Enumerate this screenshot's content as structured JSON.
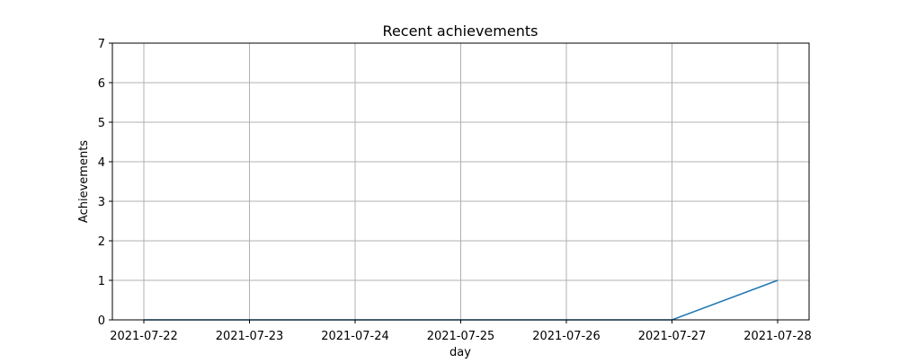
{
  "chart_data": {
    "type": "line",
    "title": "Recent achievements",
    "xlabel": "day",
    "ylabel": "Achievements",
    "x": [
      "2021-07-22",
      "2021-07-23",
      "2021-07-24",
      "2021-07-25",
      "2021-07-26",
      "2021-07-27",
      "2021-07-28"
    ],
    "series": [
      {
        "values": [
          0,
          0,
          0,
          0,
          0,
          0,
          1
        ]
      }
    ],
    "ylim": [
      0,
      7
    ],
    "yticks": [
      0,
      1,
      2,
      3,
      4,
      5,
      6,
      7
    ],
    "grid": true,
    "legend": "none",
    "colors": {
      "line": "#1f77b4",
      "grid": "#b0b0b0",
      "axes": "#000000"
    }
  }
}
